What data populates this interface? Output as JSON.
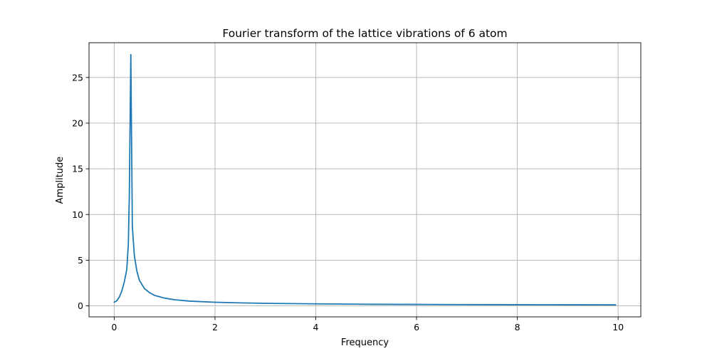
{
  "chart_data": {
    "type": "line",
    "title": "Fourier transform of the lattice vibrations of 6 atom",
    "xlabel": "Frequency",
    "ylabel": "Amplitude",
    "xlim": [
      -0.5,
      10.45
    ],
    "ylim": [
      -1.2,
      28.8
    ],
    "xticks": [
      0,
      2,
      4,
      6,
      8,
      10
    ],
    "yticks": [
      0,
      5,
      10,
      15,
      20,
      25
    ],
    "grid": true,
    "line_color": "#1f77b4",
    "series": [
      {
        "x": [
          0.0,
          0.05,
          0.1,
          0.15,
          0.2,
          0.25,
          0.28,
          0.3,
          0.33,
          0.36,
          0.4,
          0.45,
          0.5,
          0.6,
          0.7,
          0.8,
          1.0,
          1.2,
          1.5,
          2.0,
          2.5,
          3.0,
          4.0,
          5.0,
          6.0,
          7.0,
          8.0,
          9.0,
          9.95
        ],
        "y": [
          0.4,
          0.55,
          0.95,
          1.6,
          2.6,
          4.0,
          6.7,
          12.0,
          27.5,
          8.7,
          5.5,
          3.8,
          2.8,
          1.9,
          1.45,
          1.15,
          0.85,
          0.67,
          0.52,
          0.4,
          0.33,
          0.28,
          0.22,
          0.18,
          0.16,
          0.14,
          0.13,
          0.12,
          0.11
        ]
      }
    ]
  }
}
